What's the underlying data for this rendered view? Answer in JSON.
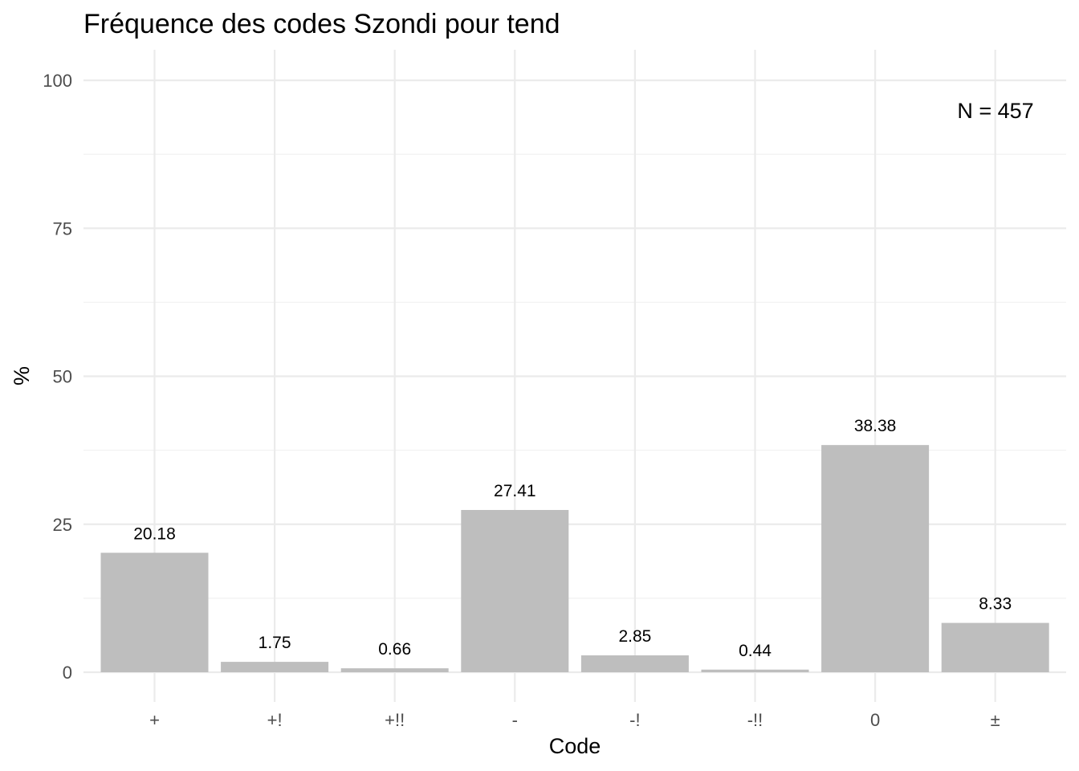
{
  "chart_data": {
    "type": "bar",
    "title": "Fréquence des codes Szondi pour tend",
    "xlabel": "Code",
    "ylabel": "%",
    "categories": [
      "+",
      "+!",
      "+!!",
      "-",
      "-!",
      "-!!",
      "0",
      "±"
    ],
    "values": [
      20.18,
      1.75,
      0.66,
      27.41,
      2.85,
      0.44,
      38.38,
      8.33
    ],
    "data_labels": [
      "20.18",
      "1.75",
      "0.66",
      "27.41",
      "2.85",
      "0.44",
      "38.38",
      "8.33"
    ],
    "ylim": [
      0,
      100
    ],
    "y_ticks": [
      0,
      25,
      50,
      75,
      100
    ],
    "y_tick_labels": [
      "0",
      "25",
      "50",
      "75",
      "100"
    ],
    "annotation": "N = 457",
    "annotation_placement": "top-right",
    "bar_color": "#bebebe",
    "grid": true,
    "legend": "none"
  }
}
